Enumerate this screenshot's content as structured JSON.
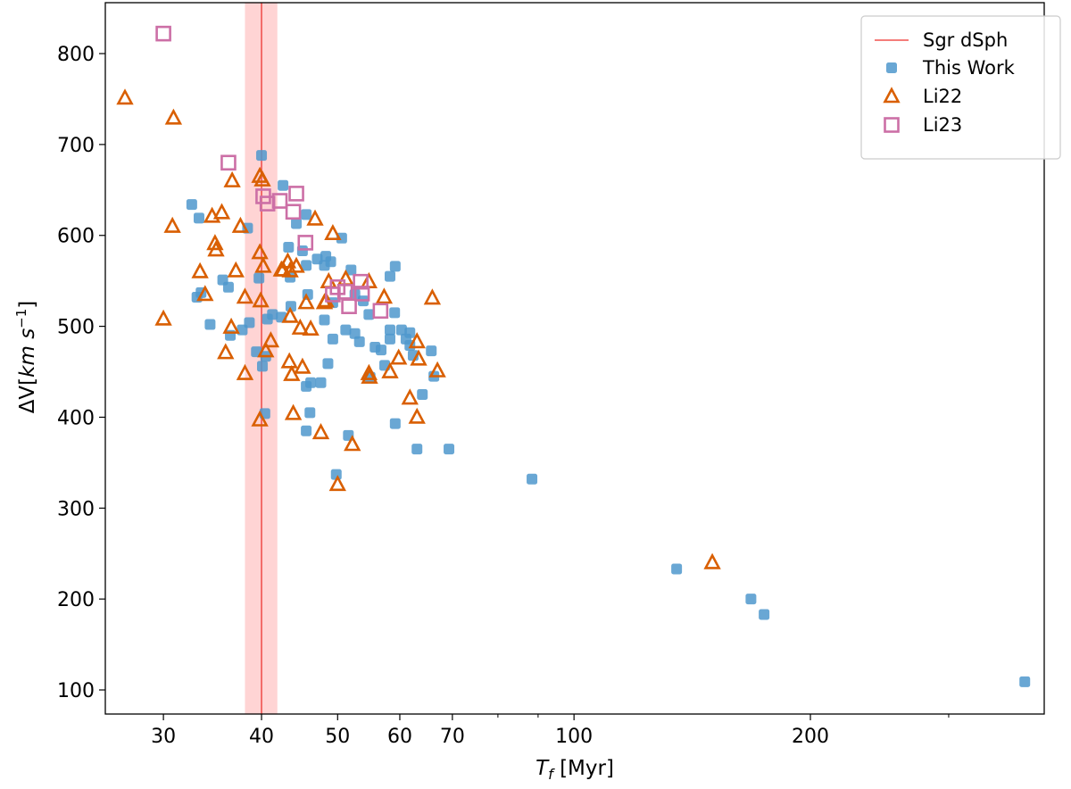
{
  "chart_data": {
    "type": "scatter",
    "title": "",
    "xlabel": {
      "main": "T",
      "sub": "f",
      "unit": " [Myr]"
    },
    "ylabel": {
      "prefix": "ΔV[",
      "unit": "km s",
      "sup": "−1",
      "suffix": "]"
    },
    "xscale": "log",
    "xlim": [
      25.3,
      397
    ],
    "ylim": [
      73.5,
      856
    ],
    "xticks": [
      30,
      40,
      50,
      60,
      70,
      100,
      200
    ],
    "xtick_labels": [
      "30",
      "40",
      "50",
      "60",
      "70",
      "100",
      "200"
    ],
    "xminor_ticks": [
      80,
      90,
      300
    ],
    "yticks": [
      100,
      200,
      300,
      400,
      500,
      600,
      700,
      800
    ],
    "ytick_labels": [
      "100",
      "200",
      "300",
      "400",
      "500",
      "600",
      "700",
      "800"
    ],
    "grid": false,
    "legend_placement": "top-right",
    "reference": {
      "name": "Sgr dSph",
      "x": 40,
      "band": [
        38.1,
        41.9
      ],
      "color": "#f0524f",
      "band_color": "#ffd4d4"
    },
    "series": [
      {
        "name": "This Work",
        "marker": "filled-square",
        "color": "#4f98cc",
        "points": [
          [
            40.0,
            688
          ],
          [
            32.6,
            634
          ],
          [
            33.3,
            619
          ],
          [
            42.6,
            655
          ],
          [
            38.4,
            608
          ],
          [
            35.7,
            551
          ],
          [
            36.3,
            543
          ],
          [
            39.7,
            553
          ],
          [
            33.5,
            537
          ],
          [
            33.1,
            532
          ],
          [
            41.3,
            513
          ],
          [
            40.7,
            508
          ],
          [
            42.4,
            510
          ],
          [
            34.4,
            502
          ],
          [
            38.6,
            504
          ],
          [
            37.8,
            496
          ],
          [
            36.5,
            490
          ],
          [
            39.4,
            472
          ],
          [
            40.5,
            467
          ],
          [
            40.1,
            456
          ],
          [
            40.4,
            404
          ],
          [
            45.6,
            623
          ],
          [
            44.3,
            613
          ],
          [
            50.6,
            597
          ],
          [
            43.3,
            587
          ],
          [
            45.1,
            583
          ],
          [
            47.1,
            574
          ],
          [
            48.3,
            577
          ],
          [
            49.0,
            571
          ],
          [
            48.1,
            567
          ],
          [
            45.6,
            567
          ],
          [
            52.0,
            562
          ],
          [
            59.2,
            566
          ],
          [
            58.3,
            555
          ],
          [
            43.5,
            554
          ],
          [
            45.8,
            535
          ],
          [
            52.6,
            535
          ],
          [
            53.9,
            528
          ],
          [
            49.3,
            526
          ],
          [
            43.6,
            522
          ],
          [
            54.8,
            513
          ],
          [
            59.1,
            515
          ],
          [
            48.1,
            507
          ],
          [
            58.3,
            496
          ],
          [
            60.3,
            496
          ],
          [
            61.8,
            493
          ],
          [
            51.2,
            496
          ],
          [
            52.6,
            492
          ],
          [
            49.3,
            486
          ],
          [
            53.3,
            483
          ],
          [
            58.3,
            486
          ],
          [
            61.1,
            486
          ],
          [
            61.8,
            479
          ],
          [
            55.8,
            477
          ],
          [
            56.8,
            474
          ],
          [
            65.8,
            473
          ],
          [
            62.4,
            468
          ],
          [
            48.6,
            459
          ],
          [
            57.4,
            457
          ],
          [
            66.3,
            445
          ],
          [
            55.0,
            444
          ],
          [
            45.6,
            434
          ],
          [
            46.2,
            438
          ],
          [
            47.6,
            438
          ],
          [
            64.1,
            425
          ],
          [
            46.1,
            405
          ],
          [
            59.2,
            393
          ],
          [
            45.6,
            385
          ],
          [
            51.6,
            380
          ],
          [
            63.1,
            365
          ],
          [
            69.3,
            365
          ],
          [
            49.8,
            337
          ],
          [
            88.4,
            332
          ],
          [
            135.1,
            233
          ],
          [
            168,
            200
          ],
          [
            174.6,
            183
          ],
          [
            375,
            109
          ]
        ]
      },
      {
        "name": "Li22",
        "marker": "open-triangle",
        "color": "#d95f02",
        "points": [
          [
            26.8,
            751
          ],
          [
            30.9,
            729
          ],
          [
            36.7,
            660
          ],
          [
            39.8,
            665
          ],
          [
            40.1,
            661
          ],
          [
            34.6,
            621
          ],
          [
            35.6,
            625
          ],
          [
            30.8,
            610
          ],
          [
            37.6,
            610
          ],
          [
            34.9,
            591
          ],
          [
            35.0,
            584
          ],
          [
            39.8,
            581
          ],
          [
            40.2,
            566
          ],
          [
            42.4,
            562
          ],
          [
            33.4,
            560
          ],
          [
            37.1,
            561
          ],
          [
            33.9,
            535
          ],
          [
            38.1,
            532
          ],
          [
            39.9,
            528
          ],
          [
            30.0,
            508
          ],
          [
            36.6,
            499
          ],
          [
            41.1,
            484
          ],
          [
            40.5,
            473
          ],
          [
            36.0,
            471
          ],
          [
            38.1,
            448
          ],
          [
            39.8,
            397
          ],
          [
            46.8,
            618
          ],
          [
            49.3,
            602
          ],
          [
            43.2,
            571
          ],
          [
            44.3,
            566
          ],
          [
            42.6,
            562
          ],
          [
            43.5,
            561
          ],
          [
            48.7,
            549
          ],
          [
            51.2,
            552
          ],
          [
            54.8,
            549
          ],
          [
            57.3,
            532
          ],
          [
            66.0,
            531
          ],
          [
            45.6,
            526
          ],
          [
            48.1,
            526
          ],
          [
            48.3,
            528
          ],
          [
            43.5,
            511
          ],
          [
            44.8,
            498
          ],
          [
            46.2,
            497
          ],
          [
            63.1,
            483
          ],
          [
            59.8,
            465
          ],
          [
            63.4,
            464
          ],
          [
            43.4,
            461
          ],
          [
            45.1,
            455
          ],
          [
            43.7,
            447
          ],
          [
            67.0,
            451
          ],
          [
            54.8,
            448
          ],
          [
            54.9,
            444
          ],
          [
            58.3,
            450
          ],
          [
            61.8,
            421
          ],
          [
            63.1,
            400
          ],
          [
            43.9,
            404
          ],
          [
            47.6,
            383
          ],
          [
            52.2,
            370
          ],
          [
            50.0,
            326
          ],
          [
            150,
            240
          ]
        ]
      },
      {
        "name": "Li23",
        "marker": "open-square",
        "color": "#cc6fa6",
        "points": [
          [
            30.0,
            822
          ],
          [
            36.3,
            680
          ],
          [
            40.2,
            643
          ],
          [
            40.7,
            635
          ],
          [
            42.2,
            638
          ],
          [
            43.9,
            626
          ],
          [
            44.3,
            646
          ],
          [
            45.5,
            592
          ],
          [
            50.0,
            543
          ],
          [
            49.3,
            535
          ],
          [
            51.1,
            538
          ],
          [
            51.7,
            522
          ],
          [
            53.5,
            549
          ],
          [
            53.7,
            536
          ],
          [
            56.7,
            517
          ]
        ]
      }
    ]
  }
}
